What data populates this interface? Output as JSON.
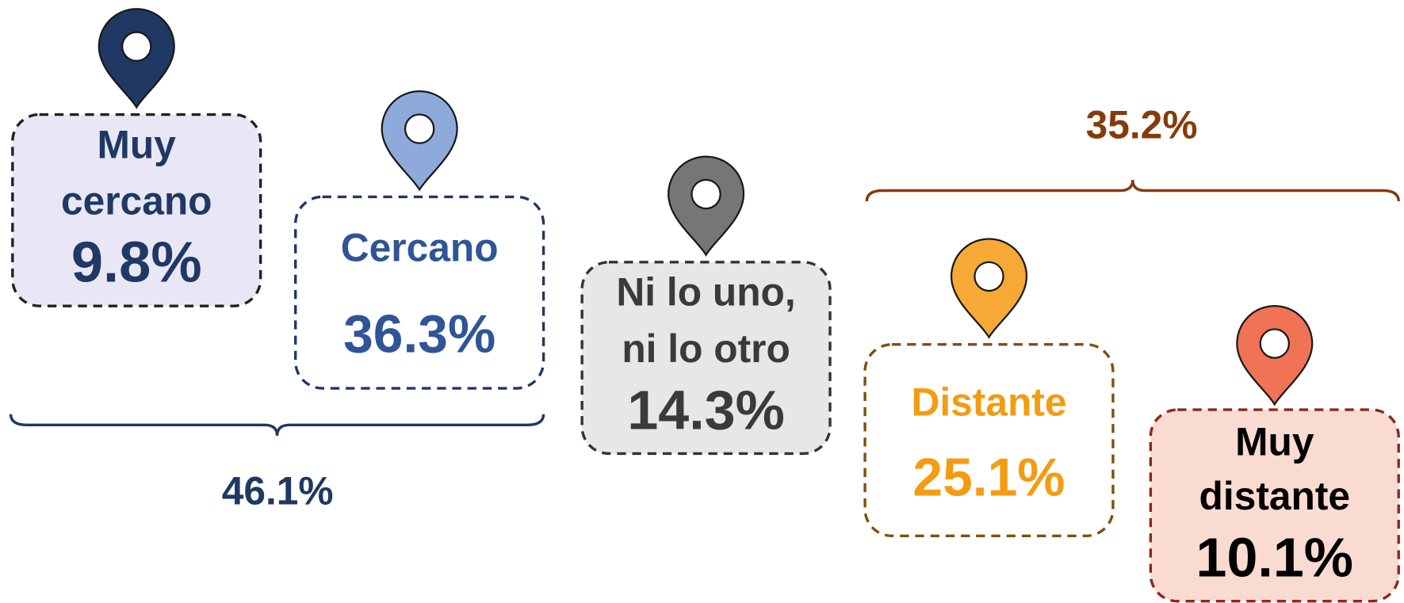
{
  "items": [
    {
      "lines": [
        "Muy",
        "cercano"
      ],
      "value": "9.8%"
    },
    {
      "lines": [
        "Cercano"
      ],
      "value": "36.3%"
    },
    {
      "lines": [
        "Ni lo uno,",
        "ni lo otro"
      ],
      "value": "14.3%"
    },
    {
      "lines": [
        "Distante"
      ],
      "value": "25.1%"
    },
    {
      "lines": [
        "Muy",
        "distante"
      ],
      "value": "10.1%"
    }
  ],
  "groups": [
    {
      "value": "46.1%"
    },
    {
      "value": "35.2%"
    }
  ]
}
